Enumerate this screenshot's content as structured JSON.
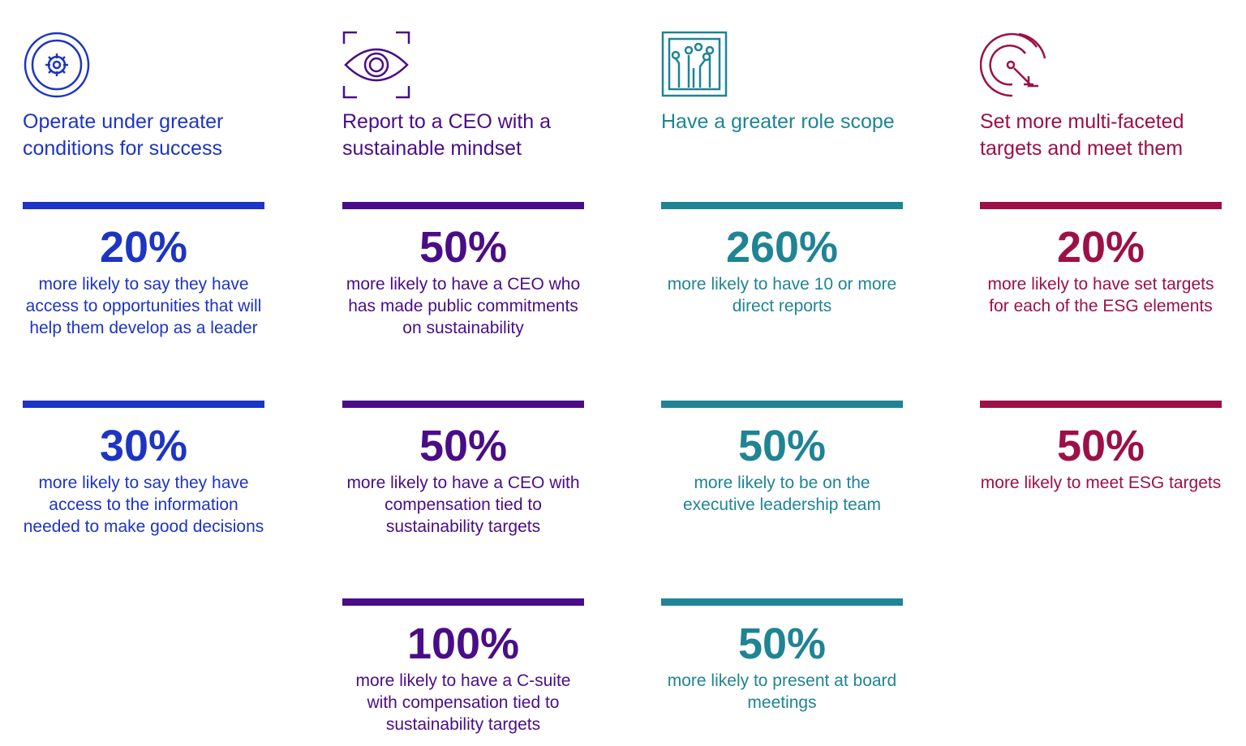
{
  "columns": [
    {
      "title": "Operate under greater conditions for success",
      "color": "#1d34c4",
      "stats": [
        {
          "value": "20%",
          "text": "more likely to say they have access to opportunities that will help them develop as a leader"
        },
        {
          "value": "30%",
          "text": "more likely to say they have access to the information needed to make good decisions"
        }
      ]
    },
    {
      "title": "Report to a CEO with a sustainable mindset",
      "color": "#4a0d88",
      "stats": [
        {
          "value": "50%",
          "text": "more likely to have a CEO who has made public commitments on sustainability"
        },
        {
          "value": "50%",
          "text": "more likely to have a CEO with compensation tied to sustainability targets"
        },
        {
          "value": "100%",
          "text": "more likely to have a C-suite with compensation tied to sustainability targets"
        }
      ]
    },
    {
      "title": "Have a greater role scope",
      "color": "#1f8494",
      "stats": [
        {
          "value": "260%",
          "text": "more likely to have 10 or more direct reports"
        },
        {
          "value": "50%",
          "text": "more likely to be on the executive leadership team"
        },
        {
          "value": "50%",
          "text": "more likely to present at board meetings"
        }
      ]
    },
    {
      "title": "Set more multi-faceted targets and meet them",
      "color": "#9c1047",
      "stats": [
        {
          "value": "20%",
          "text": "more likely to have set targets for each of the ESG elements"
        },
        {
          "value": "50%",
          "text": "more likely to meet ESG targets"
        }
      ]
    }
  ]
}
